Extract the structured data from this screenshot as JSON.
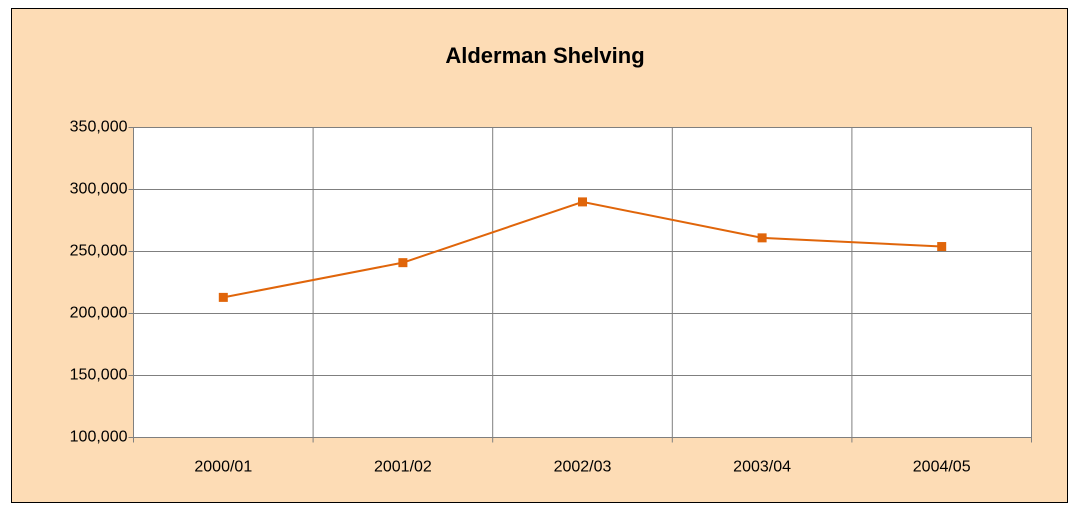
{
  "chart_data": {
    "type": "line",
    "title": "Alderman Shelving",
    "categories": [
      "2000/01",
      "2001/02",
      "2002/03",
      "2003/04",
      "2004/05"
    ],
    "series": [
      {
        "name": "Alderman Shelving",
        "color": "#e0650a",
        "values": [
          213000,
          241000,
          290000,
          261000,
          254000
        ]
      }
    ],
    "ylim": [
      100000,
      350000
    ],
    "yticks": [
      {
        "value": 100000,
        "label": "100,000"
      },
      {
        "value": 150000,
        "label": "150,000"
      },
      {
        "value": 200000,
        "label": "200,000"
      },
      {
        "value": 250000,
        "label": "250,000"
      },
      {
        "value": 300000,
        "label": "300,000"
      },
      {
        "value": 350000,
        "label": "350,000"
      }
    ],
    "grid": true
  }
}
